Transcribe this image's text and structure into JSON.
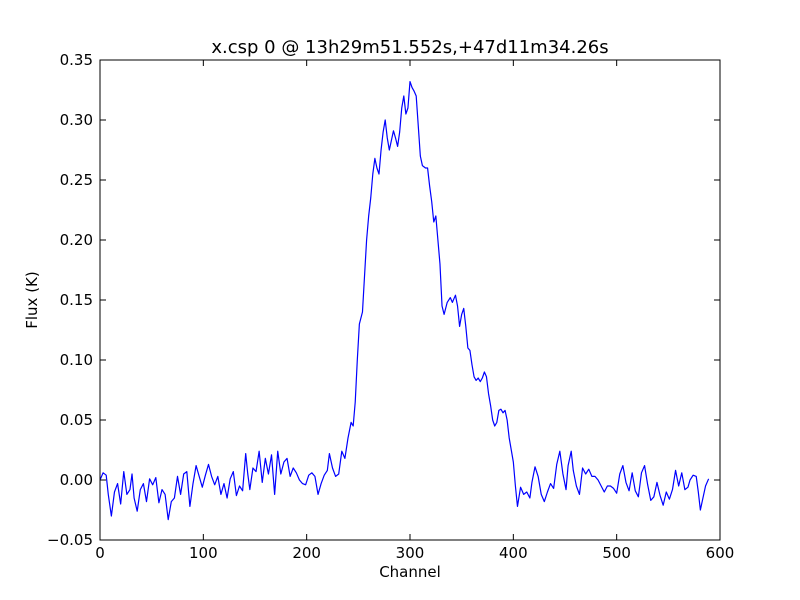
{
  "chart_data": {
    "type": "line",
    "title": "x.csp 0 @ 13h29m51.552s,+47d11m34.26s",
    "xlabel": "Channel",
    "ylabel": "Flux (K)",
    "xlim": [
      0,
      600
    ],
    "ylim": [
      -0.05,
      0.35
    ],
    "xticks": [
      0,
      100,
      200,
      300,
      400,
      500,
      600
    ],
    "xtick_labels": [
      "0",
      "100",
      "200",
      "300",
      "400",
      "500",
      "600"
    ],
    "yticks": [
      -0.05,
      0.0,
      0.05,
      0.1,
      0.15,
      0.2,
      0.25,
      0.3,
      0.35
    ],
    "ytick_labels": [
      "−0.05",
      "0.00",
      "0.05",
      "0.10",
      "0.15",
      "0.20",
      "0.25",
      "0.30",
      "0.35"
    ],
    "grid": false,
    "line_color": "#0000ff",
    "series": [
      {
        "points": [
          [
            0,
            0.0
          ],
          [
            3,
            0.006
          ],
          [
            6,
            0.004
          ],
          [
            8,
            -0.012
          ],
          [
            11,
            -0.03
          ],
          [
            14,
            -0.01
          ],
          [
            17,
            -0.003
          ],
          [
            20,
            -0.02
          ],
          [
            23,
            0.007
          ],
          [
            26,
            -0.012
          ],
          [
            29,
            -0.008
          ],
          [
            31,
            0.005
          ],
          [
            33,
            -0.015
          ],
          [
            36,
            -0.026
          ],
          [
            39,
            -0.008
          ],
          [
            42,
            -0.003
          ],
          [
            45,
            -0.018
          ],
          [
            48,
            0.001
          ],
          [
            51,
            -0.004
          ],
          [
            54,
            0.002
          ],
          [
            57,
            -0.019
          ],
          [
            60,
            -0.008
          ],
          [
            63,
            -0.012
          ],
          [
            66,
            -0.033
          ],
          [
            69,
            -0.018
          ],
          [
            72,
            -0.015
          ],
          [
            75,
            0.003
          ],
          [
            78,
            -0.012
          ],
          [
            81,
            0.005
          ],
          [
            84,
            0.007
          ],
          [
            87,
            -0.022
          ],
          [
            90,
            -0.003
          ],
          [
            93,
            0.012
          ],
          [
            96,
            0.003
          ],
          [
            99,
            -0.006
          ],
          [
            102,
            0.004
          ],
          [
            105,
            0.013
          ],
          [
            108,
            0.003
          ],
          [
            111,
            -0.004
          ],
          [
            114,
            0.003
          ],
          [
            117,
            -0.012
          ],
          [
            120,
            -0.003
          ],
          [
            123,
            -0.015
          ],
          [
            126,
            0.001
          ],
          [
            129,
            0.007
          ],
          [
            132,
            -0.013
          ],
          [
            135,
            -0.005
          ],
          [
            138,
            -0.009
          ],
          [
            141,
            0.022
          ],
          [
            143,
            0.005
          ],
          [
            145,
            -0.008
          ],
          [
            148,
            0.01
          ],
          [
            151,
            0.007
          ],
          [
            154,
            0.024
          ],
          [
            157,
            -0.002
          ],
          [
            160,
            0.018
          ],
          [
            163,
            0.005
          ],
          [
            166,
            0.021
          ],
          [
            169,
            -0.012
          ],
          [
            172,
            0.024
          ],
          [
            175,
            0.005
          ],
          [
            178,
            0.015
          ],
          [
            181,
            0.018
          ],
          [
            184,
            0.003
          ],
          [
            187,
            0.01
          ],
          [
            190,
            0.006
          ],
          [
            193,
            0.0
          ],
          [
            196,
            -0.003
          ],
          [
            199,
            -0.004
          ],
          [
            202,
            0.004
          ],
          [
            205,
            0.006
          ],
          [
            208,
            0.003
          ],
          [
            211,
            -0.012
          ],
          [
            214,
            -0.003
          ],
          [
            217,
            0.004
          ],
          [
            220,
            0.008
          ],
          [
            222,
            0.022
          ],
          [
            225,
            0.01
          ],
          [
            228,
            0.003
          ],
          [
            231,
            0.005
          ],
          [
            234,
            0.024
          ],
          [
            237,
            0.018
          ],
          [
            240,
            0.035
          ],
          [
            243,
            0.048
          ],
          [
            245,
            0.045
          ],
          [
            247,
            0.065
          ],
          [
            249,
            0.1
          ],
          [
            251,
            0.13
          ],
          [
            254,
            0.14
          ],
          [
            256,
            0.17
          ],
          [
            258,
            0.2
          ],
          [
            260,
            0.22
          ],
          [
            262,
            0.235
          ],
          [
            264,
            0.255
          ],
          [
            266,
            0.268
          ],
          [
            268,
            0.26
          ],
          [
            270,
            0.255
          ],
          [
            272,
            0.275
          ],
          [
            274,
            0.29
          ],
          [
            276,
            0.3
          ],
          [
            278,
            0.285
          ],
          [
            280,
            0.275
          ],
          [
            282,
            0.283
          ],
          [
            284,
            0.291
          ],
          [
            286,
            0.285
          ],
          [
            288,
            0.278
          ],
          [
            290,
            0.29
          ],
          [
            292,
            0.31
          ],
          [
            294,
            0.32
          ],
          [
            296,
            0.305
          ],
          [
            298,
            0.31
          ],
          [
            300,
            0.332
          ],
          [
            302,
            0.327
          ],
          [
            304,
            0.324
          ],
          [
            306,
            0.32
          ],
          [
            308,
            0.295
          ],
          [
            310,
            0.27
          ],
          [
            312,
            0.262
          ],
          [
            315,
            0.26
          ],
          [
            317,
            0.26
          ],
          [
            319,
            0.245
          ],
          [
            321,
            0.232
          ],
          [
            323,
            0.215
          ],
          [
            325,
            0.22
          ],
          [
            327,
            0.2
          ],
          [
            329,
            0.18
          ],
          [
            331,
            0.145
          ],
          [
            333,
            0.138
          ],
          [
            336,
            0.148
          ],
          [
            339,
            0.152
          ],
          [
            341,
            0.148
          ],
          [
            344,
            0.154
          ],
          [
            346,
            0.145
          ],
          [
            348,
            0.128
          ],
          [
            350,
            0.138
          ],
          [
            352,
            0.143
          ],
          [
            354,
            0.128
          ],
          [
            356,
            0.11
          ],
          [
            358,
            0.108
          ],
          [
            360,
            0.096
          ],
          [
            362,
            0.086
          ],
          [
            364,
            0.083
          ],
          [
            366,
            0.085
          ],
          [
            368,
            0.082
          ],
          [
            370,
            0.085
          ],
          [
            372,
            0.09
          ],
          [
            374,
            0.086
          ],
          [
            376,
            0.072
          ],
          [
            378,
            0.062
          ],
          [
            380,
            0.05
          ],
          [
            382,
            0.045
          ],
          [
            384,
            0.048
          ],
          [
            386,
            0.058
          ],
          [
            388,
            0.059
          ],
          [
            390,
            0.056
          ],
          [
            392,
            0.058
          ],
          [
            394,
            0.05
          ],
          [
            396,
            0.035
          ],
          [
            398,
            0.025
          ],
          [
            400,
            0.015
          ],
          [
            402,
            -0.005
          ],
          [
            404,
            -0.022
          ],
          [
            407,
            -0.006
          ],
          [
            410,
            -0.012
          ],
          [
            413,
            -0.01
          ],
          [
            416,
            -0.015
          ],
          [
            418,
            -0.002
          ],
          [
            421,
            0.011
          ],
          [
            424,
            0.003
          ],
          [
            427,
            -0.012
          ],
          [
            430,
            -0.018
          ],
          [
            433,
            -0.01
          ],
          [
            436,
            -0.003
          ],
          [
            439,
            -0.007
          ],
          [
            442,
            0.013
          ],
          [
            445,
            0.024
          ],
          [
            448,
            0.005
          ],
          [
            451,
            -0.008
          ],
          [
            453,
            0.012
          ],
          [
            456,
            0.024
          ],
          [
            458,
            0.008
          ],
          [
            461,
            -0.005
          ],
          [
            464,
            -0.012
          ],
          [
            467,
            0.01
          ],
          [
            470,
            0.005
          ],
          [
            473,
            0.009
          ],
          [
            476,
            0.003
          ],
          [
            479,
            0.003
          ],
          [
            482,
            0.0
          ],
          [
            485,
            -0.005
          ],
          [
            488,
            -0.01
          ],
          [
            491,
            -0.005
          ],
          [
            494,
            -0.005
          ],
          [
            497,
            -0.007
          ],
          [
            500,
            -0.011
          ],
          [
            503,
            0.005
          ],
          [
            506,
            0.012
          ],
          [
            509,
            -0.002
          ],
          [
            512,
            -0.009
          ],
          [
            515,
            0.006
          ],
          [
            518,
            -0.009
          ],
          [
            521,
            -0.014
          ],
          [
            524,
            0.006
          ],
          [
            527,
            0.012
          ],
          [
            530,
            -0.004
          ],
          [
            533,
            -0.017
          ],
          [
            536,
            -0.014
          ],
          [
            539,
            -0.002
          ],
          [
            542,
            -0.013
          ],
          [
            545,
            -0.021
          ],
          [
            548,
            -0.01
          ],
          [
            551,
            -0.016
          ],
          [
            554,
            -0.008
          ],
          [
            557,
            0.008
          ],
          [
            560,
            -0.005
          ],
          [
            563,
            0.006
          ],
          [
            566,
            -0.008
          ],
          [
            569,
            -0.006
          ],
          [
            571,
            0.0
          ],
          [
            574,
            0.004
          ],
          [
            577,
            0.003
          ],
          [
            579,
            -0.01
          ],
          [
            581,
            -0.025
          ],
          [
            583,
            -0.017
          ],
          [
            586,
            -0.005
          ],
          [
            589,
            0.001
          ]
        ]
      }
    ]
  }
}
